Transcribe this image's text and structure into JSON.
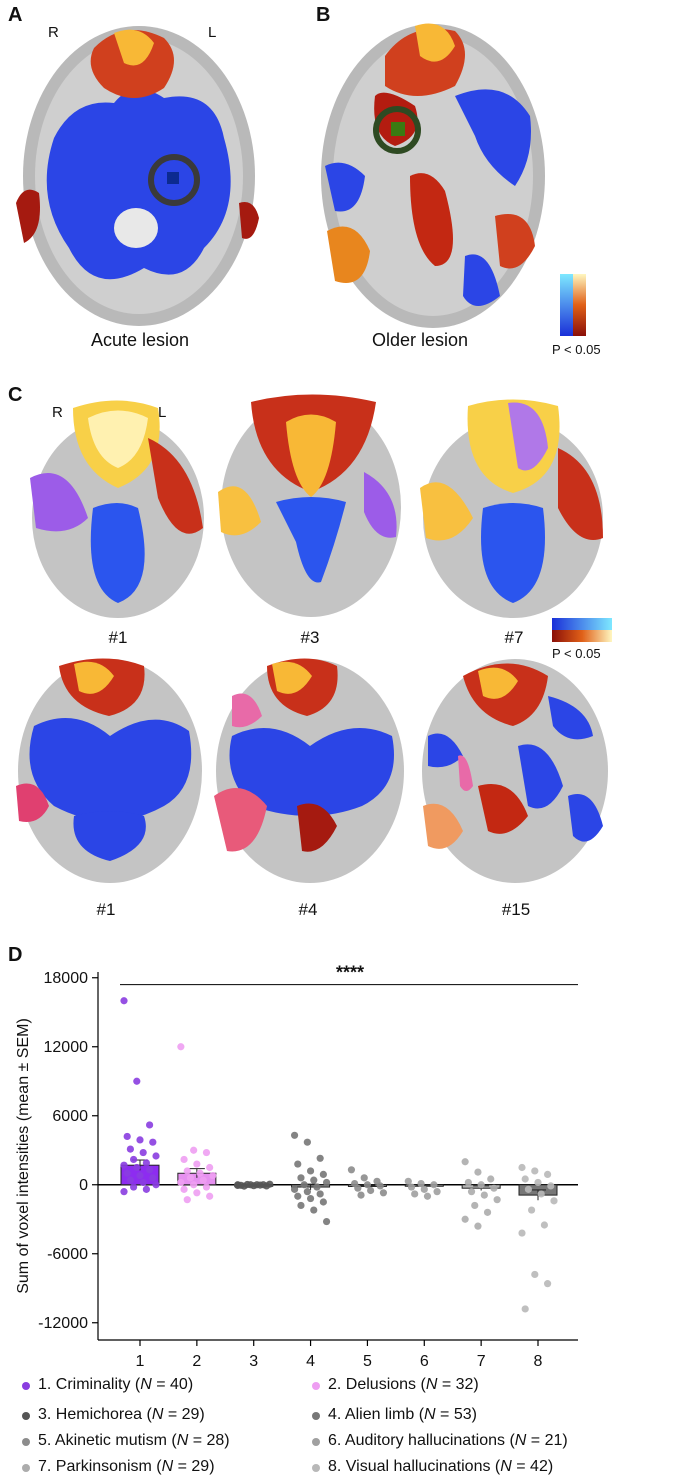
{
  "panels": {
    "A": {
      "letter": "A",
      "caption": "Acute lesion",
      "right_label": "R",
      "left_label": "L"
    },
    "B": {
      "letter": "B",
      "caption": "Older lesion",
      "p_note": "P < 0.05"
    },
    "C": {
      "letter": "C",
      "right_label": "R",
      "left_label": "L",
      "p_note": "P < 0.05",
      "slices": [
        "#1",
        "#3",
        "#7",
        "#1",
        "#4",
        "#15"
      ]
    },
    "D": {
      "letter": "D"
    }
  },
  "chart_data": {
    "type": "scatter",
    "title": "",
    "ylabel": "Sum of voxel intensities (mean ± SEM)",
    "xlabel": "",
    "ylim": [
      -13500,
      18500
    ],
    "yticks": [
      "18000",
      "12000",
      "6000",
      "0",
      "-6000",
      "-12000"
    ],
    "ytick_values": [
      18000,
      12000,
      6000,
      0,
      -6000,
      -12000
    ],
    "xticks": [
      "1",
      "2",
      "3",
      "4",
      "5",
      "6",
      "7",
      "8"
    ],
    "significance": "****",
    "grid": false,
    "legend_position": "bottom",
    "series": [
      {
        "category": "1",
        "mean": 1700,
        "sem": 450,
        "color": "#8a3de0",
        "fill": "#8d2cf0",
        "points": [
          16000,
          9000,
          5200,
          4200,
          3900,
          3700,
          3100,
          2800,
          2500,
          2200,
          1900,
          1700,
          1500,
          1300,
          1000,
          800,
          600,
          400,
          200,
          0,
          -200,
          -400,
          -600
        ]
      },
      {
        "category": "2",
        "mean": 1000,
        "sem": 400,
        "color": "#ee9ef2",
        "fill": "#e690f0",
        "points": [
          12000,
          3000,
          2800,
          2200,
          1800,
          1500,
          1200,
          1000,
          800,
          600,
          400,
          200,
          0,
          -200,
          -400,
          -700,
          -1000,
          -1300
        ]
      },
      {
        "category": "3",
        "mean": -50,
        "sem": 40,
        "color": "#555555",
        "fill": "#666666",
        "points": [
          0,
          0,
          0,
          -50,
          -80,
          -100,
          -120,
          0,
          50,
          20,
          -30,
          -60
        ]
      },
      {
        "category": "4",
        "mean": -200,
        "sem": 250,
        "color": "#777777",
        "fill": "#888888",
        "points": [
          4300,
          3700,
          2300,
          1800,
          1200,
          900,
          600,
          400,
          200,
          0,
          -200,
          -400,
          -600,
          -800,
          -1000,
          -1200,
          -1500,
          -1800,
          -2200,
          -3200
        ]
      },
      {
        "category": "5",
        "mean": -150,
        "sem": 80,
        "color": "#8c8c8c",
        "fill": "#999999",
        "points": [
          1300,
          600,
          300,
          100,
          0,
          -100,
          -300,
          -500,
          -700,
          -900
        ]
      },
      {
        "category": "6",
        "mean": -100,
        "sem": 60,
        "color": "#a0a0a0",
        "fill": "#aaaaaa",
        "points": [
          300,
          100,
          0,
          -200,
          -400,
          -600,
          -800,
          -1000
        ]
      },
      {
        "category": "7",
        "mean": -300,
        "sem": 200,
        "color": "#acacac",
        "fill": "#b5b5b5",
        "points": [
          2000,
          1100,
          500,
          200,
          0,
          -300,
          -600,
          -900,
          -1300,
          -1800,
          -2400,
          -3000,
          -3600
        ]
      },
      {
        "category": "8",
        "mean": -900,
        "sem": 450,
        "color": "#b8b8b8",
        "fill": "#777777",
        "points": [
          1500,
          1200,
          900,
          500,
          200,
          -100,
          -400,
          -800,
          -1400,
          -2200,
          -3500,
          -4200,
          -7800,
          -8600,
          -10800
        ]
      }
    ]
  },
  "legend": [
    {
      "label": "1. Criminality (",
      "n": "N",
      "rest": " = 40)",
      "color": "#8a3de0"
    },
    {
      "label": "2. Delusions (",
      "n": "N",
      "rest": " = 32)",
      "color": "#ee9ef2"
    },
    {
      "label": "3. Hemichorea (",
      "n": "N",
      "rest": " = 29)",
      "color": "#555555"
    },
    {
      "label": "4. Alien limb (",
      "n": "N",
      "rest": " = 53)",
      "color": "#777777"
    },
    {
      "label": "5. Akinetic mutism (",
      "n": "N",
      "rest": " = 28)",
      "color": "#8c8c8c"
    },
    {
      "label": "6. Auditory hallucinations (",
      "n": "N",
      "rest": " = 21)",
      "color": "#a0a0a0"
    },
    {
      "label": "7. Parkinsonism (",
      "n": "N",
      "rest": " = 29)",
      "color": "#acacac"
    },
    {
      "label": "8. Visual hallucinations (",
      "n": "N",
      "rest": " = 42)",
      "color": "#b8b8b8"
    }
  ]
}
